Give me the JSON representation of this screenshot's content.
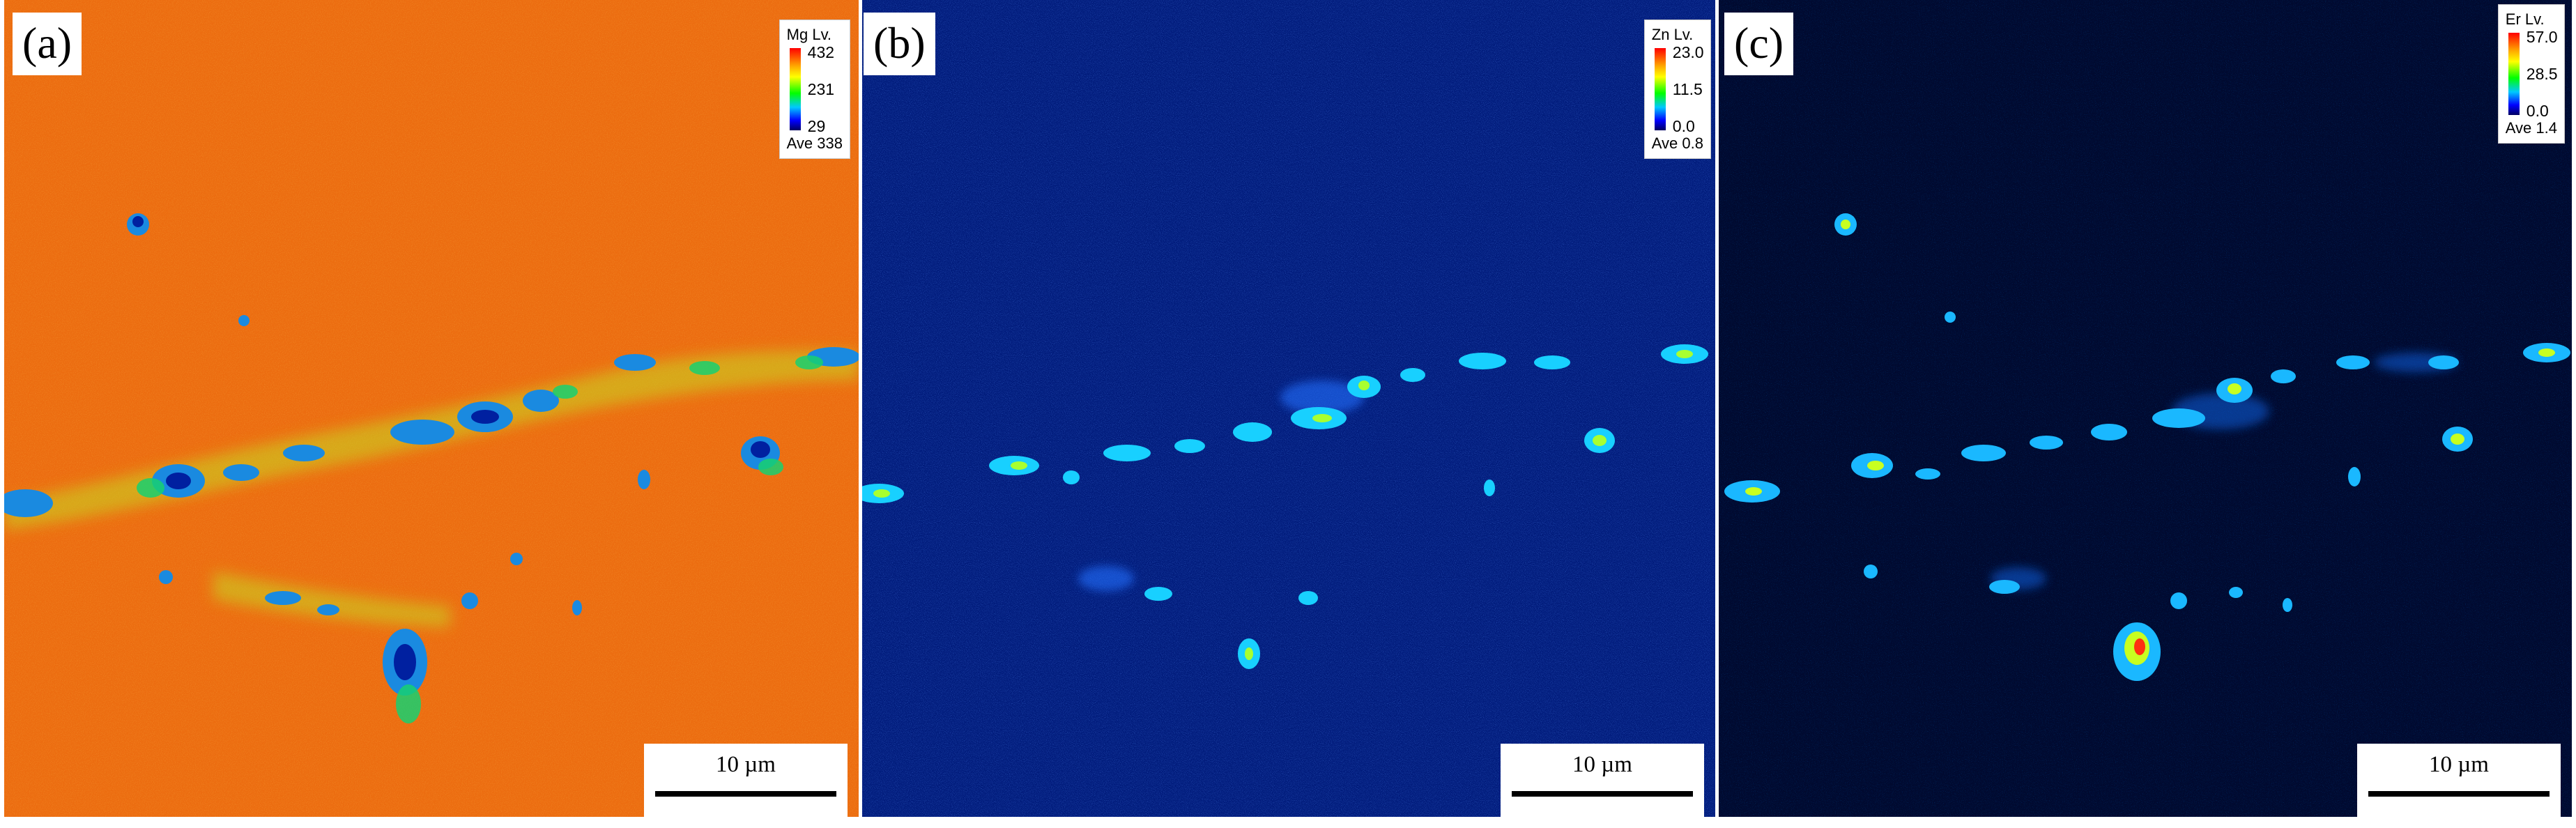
{
  "panels": [
    {
      "label": "(a)",
      "background": "#ec6c10",
      "feature_color": "#1a8ae0",
      "legend": {
        "title": "Mg  Lv.",
        "max": "432",
        "mid": "231",
        "min": "29",
        "ave": "Ave 338"
      },
      "scale": "10 µm"
    },
    {
      "label": "(b)",
      "background": "#001a7a",
      "feature_color": "#18d0ff",
      "legend": {
        "title": "Zn  Lv.",
        "max": "23.0",
        "mid": "11.5",
        "min": "0.0",
        "ave": "Ave 0.8"
      },
      "scale": "10 µm"
    },
    {
      "label": "(c)",
      "background": "#000a30",
      "feature_color": "#1ab8ff",
      "legend": {
        "title": "Er  Lv.",
        "max": "57.0",
        "mid": "28.5",
        "min": "0.0",
        "ave": "Ave 1.4"
      },
      "scale": "10 µm"
    }
  ]
}
